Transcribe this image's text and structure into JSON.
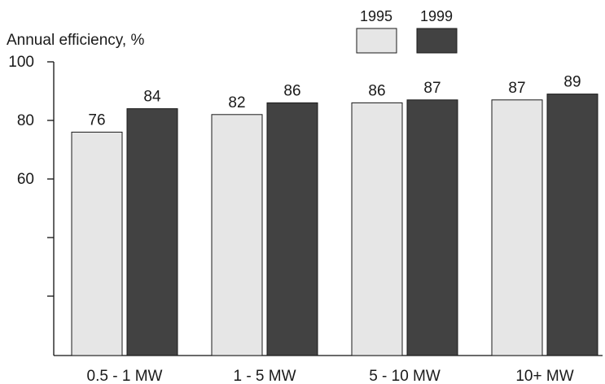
{
  "chart_data": {
    "type": "bar",
    "ylabel": "Annual efficiency, %",
    "categories": [
      "0.5 - 1 MW",
      "1 - 5 MW",
      "5 - 10 MW",
      "10+ MW"
    ],
    "series": [
      {
        "name": "1995",
        "values": [
          76,
          82,
          86,
          87
        ],
        "color": "#e6e6e6"
      },
      {
        "name": "1999",
        "values": [
          84,
          86,
          87,
          89
        ],
        "color": "#424242"
      }
    ],
    "ylim": [
      0,
      100
    ],
    "y_ticks": [
      {
        "value": 100,
        "label": "100"
      },
      {
        "value": 80,
        "label": "80"
      },
      {
        "value": 60,
        "label": "60"
      },
      {
        "value": 40,
        "label": ""
      },
      {
        "value": 20,
        "label": ""
      }
    ],
    "data_labels": true,
    "legend_position": "top-right",
    "grid": false
  }
}
